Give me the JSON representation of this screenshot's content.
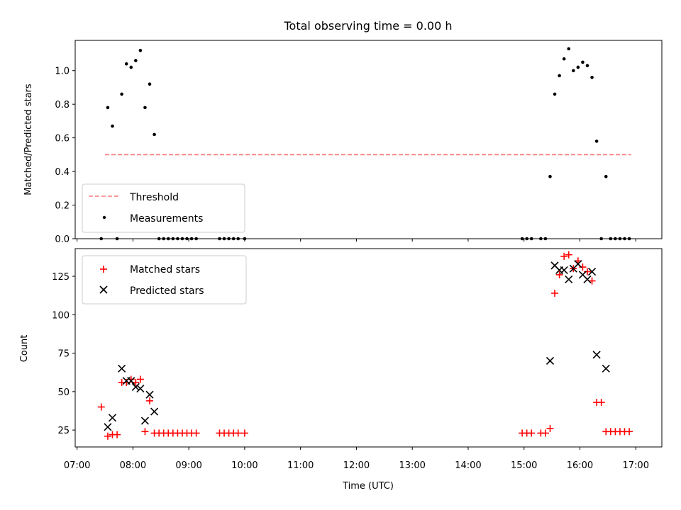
{
  "title": "Total observing time = 0.00 h",
  "chart_data": [
    {
      "type": "scatter",
      "panel": "top",
      "ylabel": "Matched/Predicted stars",
      "xlim": [
        "06:58",
        "17:28"
      ],
      "ylim": [
        0,
        1.18
      ],
      "yticks": [
        0.0,
        0.2,
        0.4,
        0.6,
        0.8,
        1.0
      ],
      "ytick_labels": [
        "0.0",
        "0.2",
        "0.4",
        "0.6",
        "0.8",
        "1.0"
      ],
      "legend_position": "lower-left",
      "colors": {
        "threshold": "#f87a7a",
        "measurements": "#000000"
      },
      "threshold": {
        "name": "Threshold",
        "x": [
          "07:30",
          "16:55"
        ],
        "y": 0.5
      },
      "measurements": {
        "name": "Measurements",
        "points": [
          [
            "07:26",
            0.0
          ],
          [
            "07:33",
            0.78
          ],
          [
            "07:38",
            0.67
          ],
          [
            "07:43",
            0.0
          ],
          [
            "07:48",
            0.86
          ],
          [
            "07:53",
            1.04
          ],
          [
            "07:58",
            1.02
          ],
          [
            "08:03",
            1.06
          ],
          [
            "08:08",
            1.12
          ],
          [
            "08:13",
            0.78
          ],
          [
            "08:18",
            0.92
          ],
          [
            "08:23",
            0.62
          ],
          [
            "08:28",
            0.0
          ],
          [
            "08:33",
            0.0
          ],
          [
            "08:38",
            0.0
          ],
          [
            "08:43",
            0.0
          ],
          [
            "08:48",
            0.0
          ],
          [
            "08:53",
            0.0
          ],
          [
            "08:58",
            0.0
          ],
          [
            "09:03",
            0.0
          ],
          [
            "09:08",
            0.0
          ],
          [
            "09:33",
            0.0
          ],
          [
            "09:38",
            0.0
          ],
          [
            "09:43",
            0.0
          ],
          [
            "09:48",
            0.0
          ],
          [
            "09:53",
            0.0
          ],
          [
            "10:00",
            0.0
          ],
          [
            "14:58",
            0.0
          ],
          [
            "15:03",
            0.0
          ],
          [
            "15:08",
            0.0
          ],
          [
            "15:18",
            0.0
          ],
          [
            "15:23",
            0.0
          ],
          [
            "15:28",
            0.37
          ],
          [
            "15:33",
            0.86
          ],
          [
            "15:38",
            0.97
          ],
          [
            "15:43",
            1.07
          ],
          [
            "15:48",
            1.13
          ],
          [
            "15:53",
            1.0
          ],
          [
            "15:58",
            1.02
          ],
          [
            "16:03",
            1.05
          ],
          [
            "16:08",
            1.03
          ],
          [
            "16:13",
            0.96
          ],
          [
            "16:18",
            0.58
          ],
          [
            "16:23",
            0.0
          ],
          [
            "16:28",
            0.37
          ],
          [
            "16:33",
            0.0
          ],
          [
            "16:38",
            0.0
          ],
          [
            "16:43",
            0.0
          ],
          [
            "16:48",
            0.0
          ],
          [
            "16:53",
            0.0
          ]
        ]
      }
    },
    {
      "type": "scatter",
      "panel": "bottom",
      "xlabel": "Time (UTC)",
      "ylabel": "Count",
      "xlim": [
        "06:58",
        "17:28"
      ],
      "ylim": [
        14,
        143
      ],
      "yticks": [
        25,
        50,
        75,
        100,
        125
      ],
      "ytick_labels": [
        "25",
        "50",
        "75",
        "100",
        "125"
      ],
      "xticks": [
        "07:00",
        "08:00",
        "09:00",
        "10:00",
        "11:00",
        "12:00",
        "13:00",
        "14:00",
        "15:00",
        "16:00",
        "17:00"
      ],
      "xtick_labels": [
        "07:00",
        "08:00",
        "09:00",
        "10:00",
        "11:00",
        "12:00",
        "13:00",
        "14:00",
        "15:00",
        "16:00",
        "17:00"
      ],
      "legend_position": "upper-left",
      "colors": {
        "matched": "#ff0000",
        "predicted": "#000000"
      },
      "series": [
        {
          "name": "Matched stars",
          "marker": "+",
          "points": [
            [
              "07:26",
              40
            ],
            [
              "07:33",
              21
            ],
            [
              "07:38",
              22
            ],
            [
              "07:43",
              22
            ],
            [
              "07:48",
              56
            ],
            [
              "07:53",
              56
            ],
            [
              "07:58",
              58
            ],
            [
              "08:03",
              56
            ],
            [
              "08:08",
              58
            ],
            [
              "08:13",
              24
            ],
            [
              "08:18",
              44
            ],
            [
              "08:23",
              23
            ],
            [
              "08:28",
              23
            ],
            [
              "08:33",
              23
            ],
            [
              "08:38",
              23
            ],
            [
              "08:43",
              23
            ],
            [
              "08:48",
              23
            ],
            [
              "08:53",
              23
            ],
            [
              "08:58",
              23
            ],
            [
              "09:03",
              23
            ],
            [
              "09:08",
              23
            ],
            [
              "09:33",
              23
            ],
            [
              "09:38",
              23
            ],
            [
              "09:43",
              23
            ],
            [
              "09:48",
              23
            ],
            [
              "09:53",
              23
            ],
            [
              "10:00",
              23
            ],
            [
              "14:58",
              23
            ],
            [
              "15:03",
              23
            ],
            [
              "15:08",
              23
            ],
            [
              "15:18",
              23
            ],
            [
              "15:23",
              23
            ],
            [
              "15:28",
              26
            ],
            [
              "15:33",
              114
            ],
            [
              "15:38",
              126
            ],
            [
              "15:43",
              138
            ],
            [
              "15:48",
              139
            ],
            [
              "15:53",
              130
            ],
            [
              "15:58",
              135
            ],
            [
              "16:03",
              131
            ],
            [
              "16:08",
              128
            ],
            [
              "16:13",
              122
            ],
            [
              "16:18",
              43
            ],
            [
              "16:23",
              43
            ],
            [
              "16:28",
              24
            ],
            [
              "16:33",
              24
            ],
            [
              "16:38",
              24
            ],
            [
              "16:43",
              24
            ],
            [
              "16:48",
              24
            ],
            [
              "16:53",
              24
            ]
          ]
        },
        {
          "name": "Predicted stars",
          "marker": "x",
          "points": [
            [
              "07:33",
              27
            ],
            [
              "07:38",
              33
            ],
            [
              "07:48",
              65
            ],
            [
              "07:53",
              57
            ],
            [
              "07:58",
              57
            ],
            [
              "08:03",
              53
            ],
            [
              "08:08",
              52
            ],
            [
              "08:13",
              31
            ],
            [
              "08:18",
              48
            ],
            [
              "08:23",
              37
            ],
            [
              "15:28",
              70
            ],
            [
              "15:33",
              132
            ],
            [
              "15:38",
              129
            ],
            [
              "15:43",
              129
            ],
            [
              "15:48",
              123
            ],
            [
              "15:53",
              130
            ],
            [
              "15:58",
              133
            ],
            [
              "16:03",
              126
            ],
            [
              "16:08",
              123
            ],
            [
              "16:13",
              128
            ],
            [
              "16:18",
              74
            ],
            [
              "16:28",
              65
            ]
          ]
        }
      ]
    }
  ]
}
